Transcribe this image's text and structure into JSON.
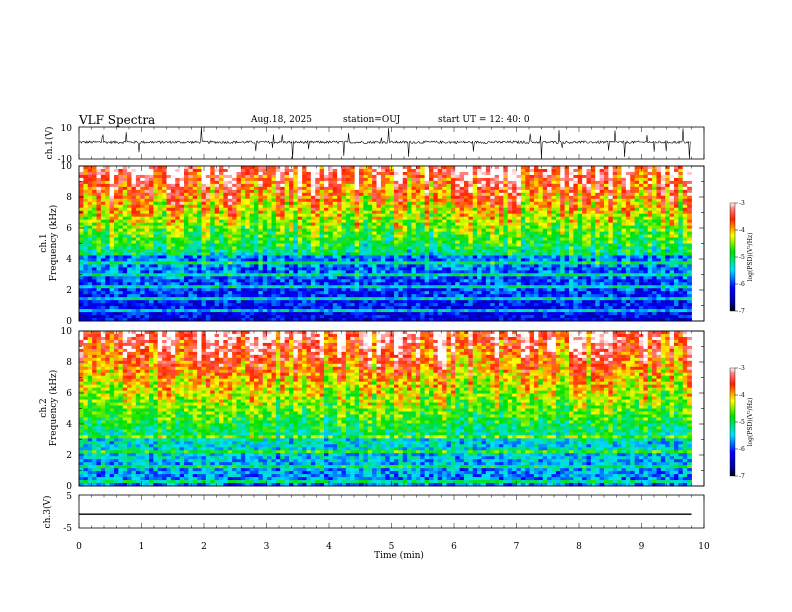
{
  "header": {
    "title": "VLF Spectra",
    "date": "Aug.18, 2025",
    "station": "station=OUJ",
    "start_ut": "start  UT  =   12: 40: 0"
  },
  "chart_data": {
    "type": "heatmap",
    "panels": [
      {
        "id": "ch1-waveform",
        "type": "line",
        "ylabel": "ch.1(V)",
        "ylim": [
          -10,
          10
        ],
        "ytick_labels": [
          "10",
          "-10"
        ]
      },
      {
        "id": "ch1-spectrogram",
        "type": "heatmap",
        "ylabel": "ch.1\nFrequency (kHz)",
        "ylim": [
          0,
          10
        ],
        "ytick_labels": [
          "0",
          "2",
          "4",
          "6",
          "8",
          "10"
        ],
        "colorbar": {
          "label": "log(PSD)(V²/Hz)",
          "range": [
            -7,
            -3
          ],
          "tick_labels": [
            "-3",
            "-4",
            "-5",
            "-6",
            "-7"
          ]
        }
      },
      {
        "id": "ch2-spectrogram",
        "type": "heatmap",
        "ylabel": "ch.2\nFrequency (kHz)",
        "ylim": [
          0,
          10
        ],
        "ytick_labels": [
          "0",
          "2",
          "4",
          "6",
          "8",
          "10"
        ],
        "colorbar": {
          "label": "log(PSD)(V²/Hz)",
          "range": [
            -7,
            -3
          ],
          "tick_labels": [
            "-3",
            "-4",
            "-5",
            "-6",
            "-7"
          ]
        }
      },
      {
        "id": "ch3-waveform",
        "type": "line",
        "ylabel": "ch.3(V)",
        "ylim": [
          -5,
          5
        ],
        "ytick_labels": [
          "5",
          "-5"
        ],
        "y": -0.8
      }
    ],
    "xlabel": "Time (min)",
    "xlim": [
      0,
      10
    ],
    "x_tick_labels": [
      "0",
      "1",
      "2",
      "3",
      "4",
      "5",
      "6",
      "7",
      "8",
      "9",
      "10"
    ],
    "data_end_min": 9.8
  }
}
